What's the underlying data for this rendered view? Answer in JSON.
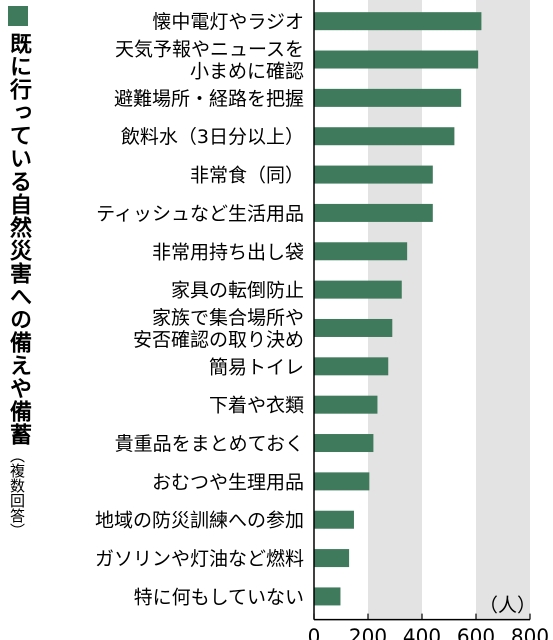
{
  "title": {
    "main": "既に行っている自然災害への備えや備蓄",
    "note": "（複数回答）"
  },
  "chart_data": {
    "type": "bar",
    "orientation": "horizontal",
    "categories": [
      "懐中電灯やラジオ",
      "天気予報やニュースを\n小まめに確認",
      "避難場所・経路を把握",
      "飲料水（3日分以上）",
      "非常食（同）",
      "ティッシュなど生活用品",
      "非常用持ち出し袋",
      "家具の転倒防止",
      "家族で集合場所や\n安否確認の取り決め",
      "簡易トイレ",
      "下着や衣類",
      "貴重品をまとめておく",
      "おむつや生理用品",
      "地域の防災訓練への参加",
      "ガソリンや灯油など燃料",
      "特に何もしていない"
    ],
    "values": [
      620,
      608,
      545,
      520,
      440,
      440,
      345,
      325,
      290,
      275,
      235,
      220,
      205,
      148,
      130,
      98
    ],
    "xlim": [
      0,
      800
    ],
    "xticks": [
      "0",
      "200",
      "400",
      "600",
      "800"
    ],
    "unit": "（人）",
    "bar_color": "#3f7a5c",
    "band_color": "#e3e3e3"
  }
}
